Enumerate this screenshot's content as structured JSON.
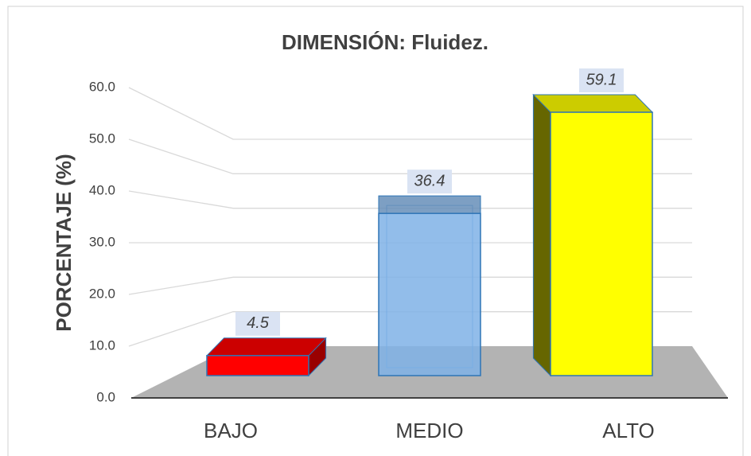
{
  "chart_data": {
    "type": "bar3d",
    "title": "DIMENSIÓN: Fluidez.",
    "y_label": "PORCENTAJE (%)",
    "categories": [
      "BAJO",
      "MEDIO",
      "ALTO"
    ],
    "values": [
      4.5,
      36.4,
      59.1
    ],
    "colors": [
      "#ff0000",
      "#7fb2e6",
      "#ffff00"
    ],
    "ylim": [
      0,
      60
    ],
    "yticks": [
      {
        "value": 0,
        "label": "0.0"
      },
      {
        "value": 10,
        "label": "10.0"
      },
      {
        "value": 20,
        "label": "20.0"
      },
      {
        "value": 30,
        "label": "30.0"
      },
      {
        "value": 40,
        "label": "40.0"
      },
      {
        "value": 50,
        "label": "50.0"
      },
      {
        "value": 60,
        "label": "60.0"
      }
    ],
    "grid": true
  }
}
